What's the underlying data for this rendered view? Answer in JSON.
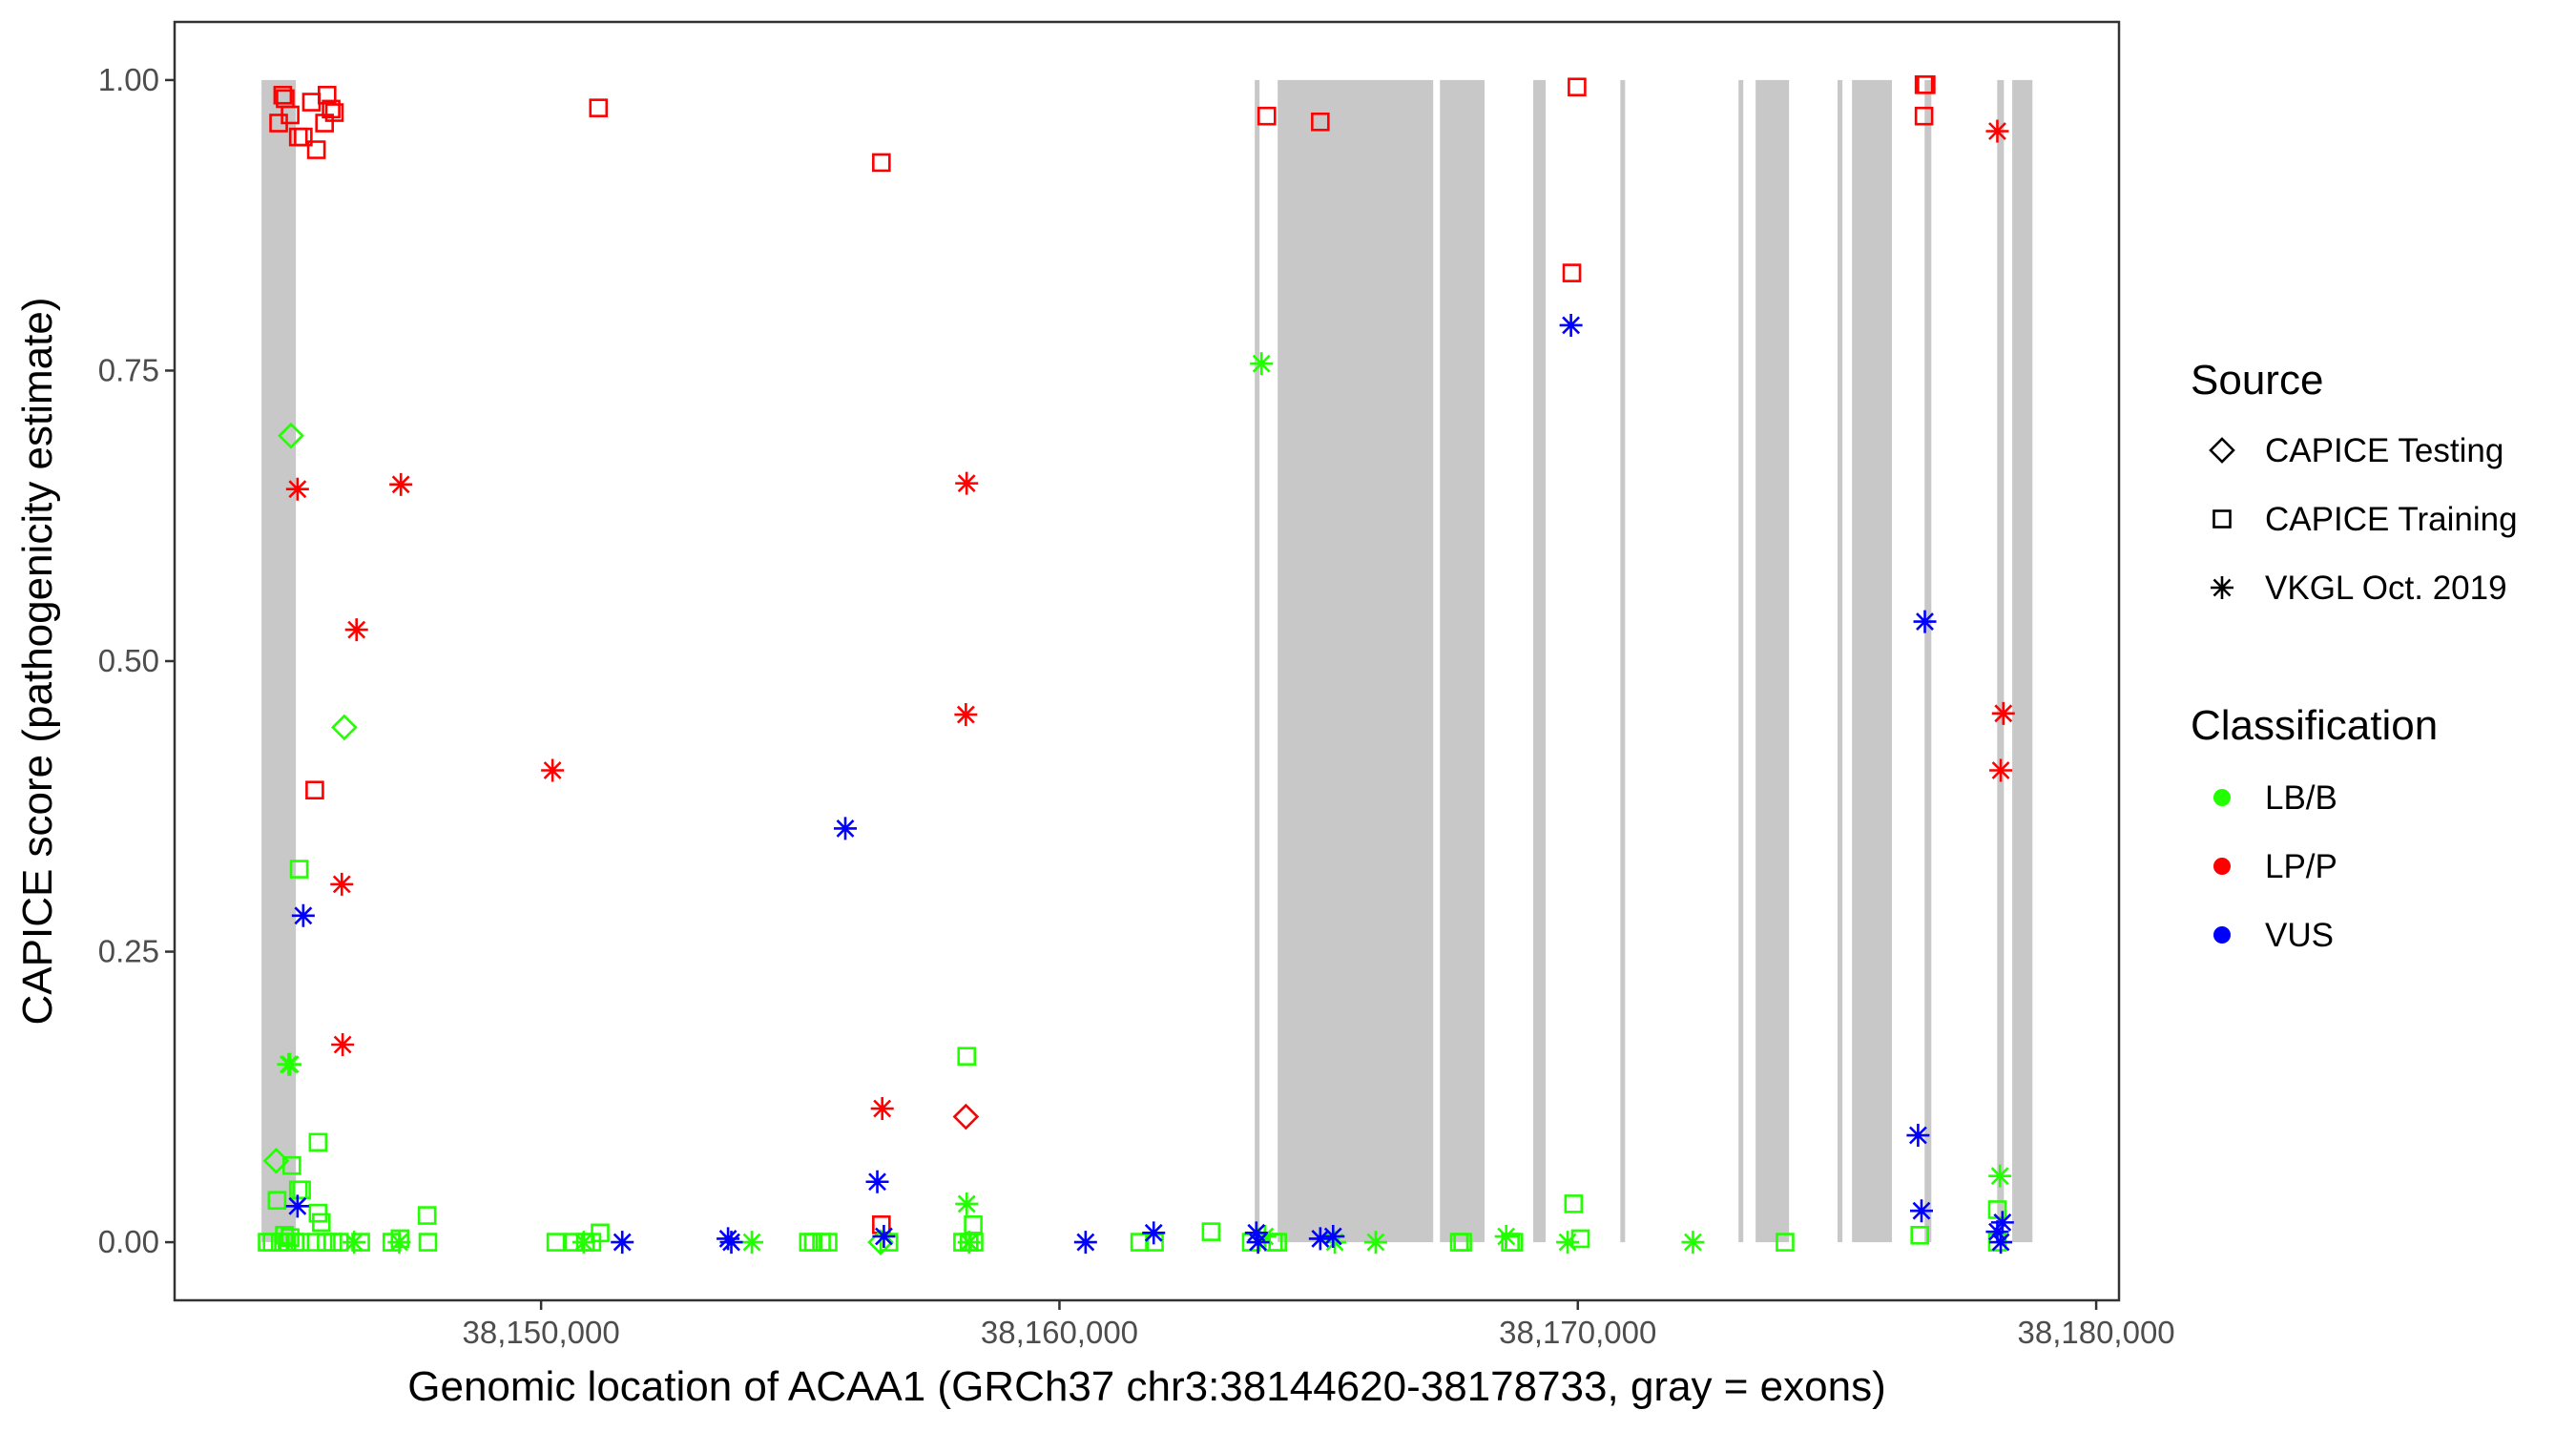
{
  "chart_data": {
    "type": "scatter",
    "xlabel": "Genomic location of ACAA1 (GRCh37 chr3:38144620-38178733, gray = exons)",
    "ylabel": "CAPICE score (pathogenicity estimate)",
    "xlim": [
      38142930,
      38180440
    ],
    "ylim": [
      -0.05,
      1.05
    ],
    "x_ticks": [
      38150000,
      38160000,
      38170000,
      38180000
    ],
    "x_tick_labels": [
      "38,150,000",
      "38,160,000",
      "38,170,000",
      "38,180,000"
    ],
    "y_ticks": [
      0,
      0.25,
      0.5,
      0.75,
      1.0
    ],
    "y_tick_labels": [
      "0.00",
      "0.25",
      "0.50",
      "0.75",
      "1.00"
    ],
    "grid": false,
    "legend_placement": "right",
    "legend": {
      "source_title": "Source",
      "sources": [
        {
          "label": "CAPICE Testing",
          "shape": "diamond"
        },
        {
          "label": "CAPICE Training",
          "shape": "square"
        },
        {
          "label": "VKGL Oct. 2019",
          "shape": "asterisk"
        }
      ],
      "class_title": "Classification",
      "classes": [
        {
          "label": "LB/B",
          "color": "#22ff00"
        },
        {
          "label": "LP/P",
          "color": "#ff0000"
        },
        {
          "label": "VUS",
          "color": "#0000ff"
        }
      ]
    },
    "exon_color": "#c8c8c8",
    "exons": [
      [
        38144607,
        38145270
      ],
      [
        38163768,
        38163860
      ],
      [
        38164210,
        38167210
      ],
      [
        38167340,
        38168200
      ],
      [
        38169140,
        38169380
      ],
      [
        38170820,
        38170890
      ],
      [
        38173100,
        38173170
      ],
      [
        38173430,
        38174075
      ],
      [
        38175010,
        38175105
      ],
      [
        38175290,
        38176060
      ],
      [
        38176690,
        38176820
      ],
      [
        38178090,
        38178220
      ],
      [
        38178380,
        38178770
      ]
    ],
    "point_fields": [
      "position",
      "score",
      "source_index",
      "class_index"
    ],
    "points": [
      [
        38144937,
        0.963,
        1,
        1
      ],
      [
        38145017,
        0.987,
        1,
        1
      ],
      [
        38145064,
        0.984,
        1,
        1
      ],
      [
        38145159,
        0.97,
        1,
        1
      ],
      [
        38145317,
        0.951,
        1,
        1
      ],
      [
        38145412,
        0.951,
        1,
        1
      ],
      [
        38145570,
        0.981,
        1,
        1
      ],
      [
        38145665,
        0.94,
        1,
        1
      ],
      [
        38145823,
        0.963,
        1,
        1
      ],
      [
        38145871,
        0.987,
        1,
        1
      ],
      [
        38145950,
        0.975,
        1,
        1
      ],
      [
        38146013,
        0.972,
        1,
        1
      ],
      [
        38151107,
        0.976,
        1,
        1
      ],
      [
        38156565,
        0.929,
        1,
        1
      ],
      [
        38145634,
        0.389,
        1,
        1
      ],
      [
        38156565,
        0.015,
        1,
        1
      ],
      [
        38164000,
        0.969,
        1,
        1
      ],
      [
        38165032,
        0.964,
        1,
        1
      ],
      [
        38169984,
        0.994,
        1,
        1
      ],
      [
        38169885,
        0.834,
        1,
        1
      ],
      [
        38176679,
        0.996,
        1,
        1
      ],
      [
        38176720,
        0.996,
        1,
        1
      ],
      [
        38176679,
        0.969,
        1,
        1
      ],
      [
        38145301,
        0.648,
        2,
        1
      ],
      [
        38147295,
        0.652,
        2,
        1
      ],
      [
        38146440,
        0.527,
        2,
        1
      ],
      [
        38150221,
        0.406,
        2,
        1
      ],
      [
        38146156,
        0.308,
        2,
        1
      ],
      [
        38146172,
        0.17,
        2,
        1
      ],
      [
        38158210,
        0.653,
        2,
        1
      ],
      [
        38158195,
        0.454,
        2,
        1
      ],
      [
        38156581,
        0.115,
        2,
        1
      ],
      [
        38178093,
        0.956,
        2,
        1
      ],
      [
        38178209,
        0.455,
        2,
        1
      ],
      [
        38178159,
        0.406,
        2,
        1
      ],
      [
        38158195,
        0.108,
        0,
        1
      ],
      [
        38145175,
        0.694,
        0,
        0
      ],
      [
        38146203,
        0.443,
        0,
        0
      ],
      [
        38144890,
        0.07,
        0,
        0
      ],
      [
        38156550,
        0.0,
        0,
        0
      ],
      [
        38145333,
        0.321,
        1,
        0
      ],
      [
        38145697,
        0.086,
        1,
        0
      ],
      [
        38145191,
        0.066,
        1,
        0
      ],
      [
        38144906,
        0.036,
        1,
        0
      ],
      [
        38145317,
        0.045,
        1,
        0
      ],
      [
        38145380,
        0.045,
        1,
        0
      ],
      [
        38145697,
        0.025,
        1,
        0
      ],
      [
        38145760,
        0.017,
        1,
        0
      ],
      [
        38147801,
        0.023,
        1,
        0
      ],
      [
        38158211,
        0.16,
        1,
        0
      ],
      [
        38158337,
        0.015,
        1,
        0
      ],
      [
        38162925,
        0.009,
        1,
        0
      ],
      [
        38151139,
        0.008,
        1,
        0
      ],
      [
        38145048,
        0.006,
        1,
        0
      ],
      [
        38145159,
        0.004,
        1,
        0
      ],
      [
        38144716,
        0.0,
        1,
        0
      ],
      [
        38144811,
        0.0,
        1,
        0
      ],
      [
        38144969,
        0.0,
        1,
        0
      ],
      [
        38145096,
        0.0,
        1,
        0
      ],
      [
        38145254,
        0.0,
        1,
        0
      ],
      [
        38145349,
        0.0,
        1,
        0
      ],
      [
        38145665,
        0.0,
        1,
        0
      ],
      [
        38145855,
        0.0,
        1,
        0
      ],
      [
        38145982,
        0.0,
        1,
        0
      ],
      [
        38146108,
        0.0,
        1,
        0
      ],
      [
        38146520,
        0.0,
        1,
        0
      ],
      [
        38147121,
        0.0,
        1,
        0
      ],
      [
        38147279,
        0.003,
        1,
        0
      ],
      [
        38147817,
        0.0,
        1,
        0
      ],
      [
        38150285,
        0.0,
        1,
        0
      ],
      [
        38150633,
        0.0,
        1,
        0
      ],
      [
        38150854,
        0.0,
        1,
        0
      ],
      [
        38150981,
        0.0,
        1,
        0
      ],
      [
        38155157,
        0.0,
        1,
        0
      ],
      [
        38155252,
        0.0,
        1,
        0
      ],
      [
        38155410,
        0.0,
        1,
        0
      ],
      [
        38155537,
        0.0,
        1,
        0
      ],
      [
        38156708,
        0.0,
        1,
        0
      ],
      [
        38158131,
        0.0,
        1,
        0
      ],
      [
        38158258,
        0.0,
        1,
        0
      ],
      [
        38158353,
        0.0,
        1,
        0
      ],
      [
        38161549,
        0.0,
        1,
        0
      ],
      [
        38161833,
        0.0,
        1,
        0
      ],
      [
        38169918,
        0.033,
        1,
        0
      ],
      [
        38176597,
        0.006,
        1,
        0
      ],
      [
        38178093,
        0.028,
        1,
        0
      ],
      [
        38173997,
        0.0,
        1,
        0
      ],
      [
        38167713,
        0.0,
        1,
        0
      ],
      [
        38167779,
        0.0,
        1,
        0
      ],
      [
        38168700,
        0.0,
        1,
        0
      ],
      [
        38168766,
        0.0,
        1,
        0
      ],
      [
        38170050,
        0.003,
        1,
        0
      ],
      [
        38163700,
        0.0,
        1,
        0
      ],
      [
        38164127,
        0.0,
        1,
        0
      ],
      [
        38164210,
        0.0,
        1,
        0
      ],
      [
        38178093,
        0.0,
        1,
        0
      ],
      [
        38145127,
        0.153,
        2,
        0
      ],
      [
        38145159,
        0.153,
        2,
        0
      ],
      [
        38158211,
        0.033,
        2,
        0
      ],
      [
        38146393,
        0.0,
        2,
        0
      ],
      [
        38147263,
        0.0,
        2,
        0
      ],
      [
        38150823,
        0.0,
        2,
        0
      ],
      [
        38154066,
        0.0,
        2,
        0
      ],
      [
        38158258,
        0.0,
        2,
        0
      ],
      [
        38163897,
        0.756,
        2,
        0
      ],
      [
        38178143,
        0.057,
        2,
        0
      ],
      [
        38166101,
        0.0,
        2,
        0
      ],
      [
        38168618,
        0.005,
        2,
        0
      ],
      [
        38169803,
        0.0,
        2,
        0
      ],
      [
        38172221,
        0.0,
        2,
        0
      ],
      [
        38165312,
        0.0,
        2,
        0
      ],
      [
        38163963,
        0.005,
        2,
        0
      ],
      [
        38145412,
        0.281,
        2,
        2
      ],
      [
        38145301,
        0.031,
        2,
        2
      ],
      [
        38155869,
        0.356,
        2,
        2
      ],
      [
        38156486,
        0.052,
        2,
        2
      ],
      [
        38151566,
        0.0,
        2,
        2
      ],
      [
        38153607,
        0.003,
        2,
        2
      ],
      [
        38153670,
        0.0,
        2,
        2
      ],
      [
        38156613,
        0.005,
        2,
        2
      ],
      [
        38160504,
        0.0,
        2,
        2
      ],
      [
        38161818,
        0.008,
        2,
        2
      ],
      [
        38169868,
        0.789,
        2,
        2
      ],
      [
        38176695,
        0.534,
        2,
        2
      ],
      [
        38176564,
        0.092,
        2,
        2
      ],
      [
        38176630,
        0.027,
        2,
        2
      ],
      [
        38163798,
        0.008,
        2,
        2
      ],
      [
        38163831,
        0.0,
        2,
        2
      ],
      [
        38165032,
        0.003,
        2,
        2
      ],
      [
        38165279,
        0.005,
        2,
        2
      ],
      [
        38178093,
        0.009,
        2,
        2
      ],
      [
        38178159,
        0.0,
        2,
        2
      ],
      [
        38178192,
        0.017,
        2,
        2
      ]
    ]
  }
}
